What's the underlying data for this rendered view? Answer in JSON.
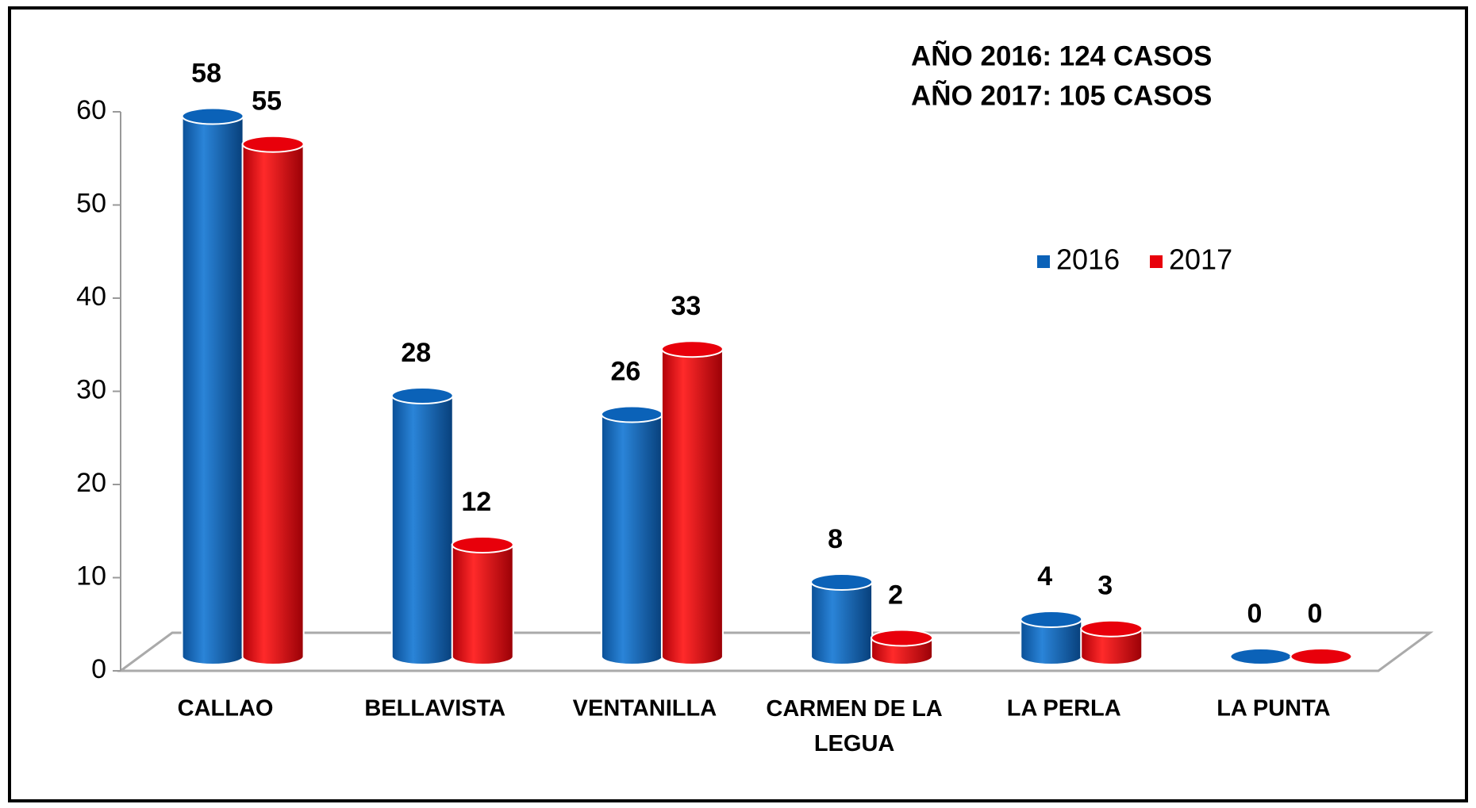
{
  "chart_data": {
    "type": "bar3d",
    "annotations": [
      "AÑO 2016: 124  CASOS",
      "AÑO 2017: 105  CASOS"
    ],
    "categories": [
      "CALLAO",
      "BELLAVISTA",
      "VENTANILLA",
      "CARMEN DE LA LEGUA",
      "LA PERLA",
      "LA PUNTA"
    ],
    "series": [
      {
        "name": "2016",
        "color": "#0b62b8",
        "values": [
          58,
          28,
          26,
          8,
          4,
          0
        ]
      },
      {
        "name": "2017",
        "color": "#e8000b",
        "values": [
          55,
          12,
          33,
          2,
          3,
          0
        ]
      }
    ],
    "ylim": [
      0,
      60
    ],
    "yticks": [
      0,
      10,
      20,
      30,
      40,
      50,
      60
    ],
    "legend": "upper right"
  }
}
